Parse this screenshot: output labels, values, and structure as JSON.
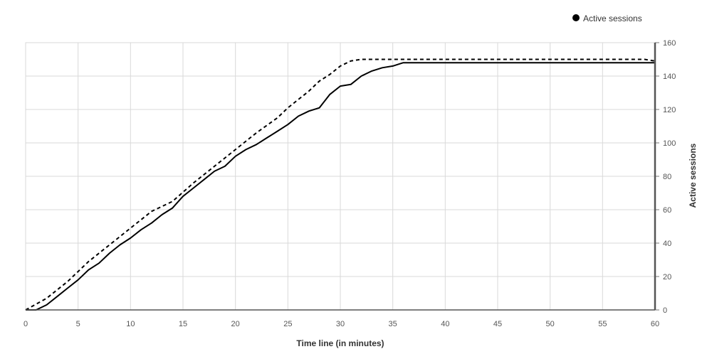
{
  "chart_data": {
    "type": "line",
    "xlabel": "Time line (in minutes)",
    "ylabel": "Active sessions",
    "xlim": [
      0,
      60
    ],
    "ylim": [
      0,
      160
    ],
    "x_ticks": [
      "0",
      "5",
      "10",
      "15",
      "20",
      "25",
      "30",
      "35",
      "40",
      "45",
      "50",
      "55",
      "60"
    ],
    "y_ticks": [
      "0",
      "20",
      "40",
      "60",
      "80",
      "100",
      "120",
      "140",
      "160"
    ],
    "grid": true,
    "y_axis_side": "right",
    "legend": {
      "position": "top-right",
      "label": "Active sessions",
      "marker_color": "#000000"
    },
    "series": [
      {
        "style": "solid",
        "color": "#000000",
        "points": [
          [
            0,
            0
          ],
          [
            1,
            0
          ],
          [
            2,
            3
          ],
          [
            3,
            8
          ],
          [
            4,
            13
          ],
          [
            5,
            18
          ],
          [
            6,
            24
          ],
          [
            7,
            28
          ],
          [
            8,
            34
          ],
          [
            9,
            39
          ],
          [
            10,
            43
          ],
          [
            11,
            48
          ],
          [
            12,
            52
          ],
          [
            13,
            57
          ],
          [
            14,
            61
          ],
          [
            15,
            68
          ],
          [
            16,
            73
          ],
          [
            17,
            78
          ],
          [
            18,
            83
          ],
          [
            19,
            86
          ],
          [
            20,
            92
          ],
          [
            21,
            96
          ],
          [
            22,
            99
          ],
          [
            23,
            103
          ],
          [
            24,
            107
          ],
          [
            25,
            111
          ],
          [
            26,
            116
          ],
          [
            27,
            119
          ],
          [
            28,
            121
          ],
          [
            29,
            129
          ],
          [
            30,
            134
          ],
          [
            31,
            135
          ],
          [
            32,
            140
          ],
          [
            33,
            143
          ],
          [
            34,
            145
          ],
          [
            35,
            146
          ],
          [
            36,
            148
          ],
          [
            40,
            148
          ],
          [
            45,
            148
          ],
          [
            50,
            148
          ],
          [
            55,
            148
          ],
          [
            60,
            148
          ]
        ]
      },
      {
        "style": "dashed",
        "color": "#000000",
        "points": [
          [
            0,
            0
          ],
          [
            2,
            7
          ],
          [
            4,
            17
          ],
          [
            6,
            29
          ],
          [
            8,
            39
          ],
          [
            10,
            49
          ],
          [
            12,
            59
          ],
          [
            14,
            65
          ],
          [
            16,
            76
          ],
          [
            18,
            86
          ],
          [
            20,
            96
          ],
          [
            22,
            106
          ],
          [
            24,
            115
          ],
          [
            25,
            121
          ],
          [
            26,
            126
          ],
          [
            27,
            131
          ],
          [
            28,
            137
          ],
          [
            29,
            141
          ],
          [
            30,
            146
          ],
          [
            31,
            149
          ],
          [
            32,
            150
          ],
          [
            35,
            150
          ],
          [
            40,
            150
          ],
          [
            45,
            150
          ],
          [
            50,
            150
          ],
          [
            55,
            150
          ],
          [
            59,
            150
          ],
          [
            60,
            149
          ]
        ]
      }
    ]
  }
}
